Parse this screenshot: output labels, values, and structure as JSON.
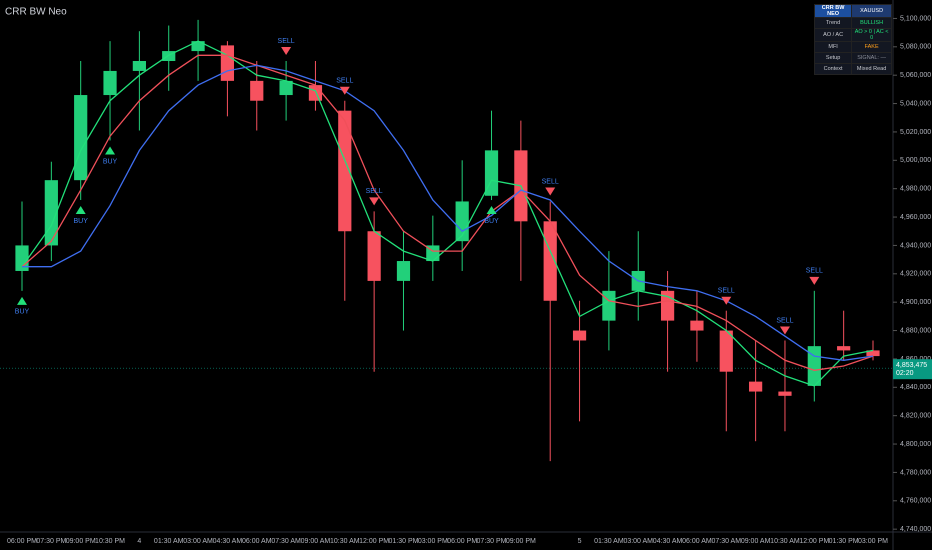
{
  "chart_data": {
    "type": "candlestick",
    "title": "CRR BW Neo",
    "categories": [
      "06:00 PM",
      "07:30 PM",
      "09:00 PM",
      "10:30 PM",
      "4",
      "01:30 AM",
      "03:00 AM",
      "04:30 AM",
      "06:00 AM",
      "07:30 AM",
      "09:00 AM",
      "10:30 AM",
      "12:00 PM",
      "01:30 PM",
      "03:00 PM",
      "06:00 PM",
      "07:30 PM",
      "09:00 PM",
      null,
      "5",
      "01:30 AM",
      "03:00 AM",
      "04:30 AM",
      "06:00 AM",
      "07:30 AM",
      "09:00 AM",
      "10:30 AM",
      "12:00 PM",
      "01:30 PM",
      "03:00 PM"
    ],
    "open": [
      4922000,
      4940000,
      4986000,
      5046000,
      5063000,
      5070000,
      5077000,
      5081000,
      5056000,
      5046000,
      5053000,
      5035000,
      4950000,
      4915000,
      4929000,
      4943000,
      4975000,
      5007000,
      4957000,
      4880000,
      4887000,
      4908000,
      4908000,
      4887000,
      4880000,
      4844000,
      4837000,
      4841000,
      4869000,
      4866000
    ],
    "high": [
      4971000,
      4999000,
      5070000,
      5084000,
      5091000,
      5095000,
      5099000,
      5084000,
      5070000,
      5070000,
      5070000,
      5042000,
      4964000,
      4950000,
      4961000,
      5000000,
      5035000,
      5028000,
      4971000,
      4901000,
      4936000,
      4950000,
      4922000,
      4908000,
      4894000,
      4873000,
      4873000,
      4908000,
      4894000,
      4873000
    ],
    "low": [
      4908000,
      4929000,
      4972000,
      5014000,
      5021000,
      5049000,
      5056000,
      5031000,
      5021000,
      5028000,
      5035000,
      4901000,
      4851000,
      4880000,
      4915000,
      4922000,
      4972000,
      4915000,
      4788000,
      4816000,
      4866000,
      4887000,
      4851000,
      4858000,
      4809000,
      4802000,
      4809000,
      4830000,
      4859000,
      4859000
    ],
    "close": [
      4940000,
      4986000,
      5046000,
      5063000,
      5070000,
      5077000,
      5084000,
      5056000,
      5042000,
      5056000,
      5042000,
      4950000,
      4915000,
      4929000,
      4940000,
      4971000,
      5007000,
      4957000,
      4901000,
      4873000,
      4908000,
      4922000,
      4887000,
      4880000,
      4851000,
      4837000,
      4834000,
      4869000,
      4866000,
      4862000
    ],
    "up_color": "#22d07a",
    "down_color": "#f7525f",
    "series": [
      {
        "name": "Fast",
        "color": "#22e07a",
        "values": [
          4925000,
          4954000,
          5007000,
          5042000,
          5060000,
          5074000,
          5084000,
          5074000,
          5060000,
          5056000,
          5049000,
          5000000,
          4950000,
          4936000,
          4929000,
          4947000,
          4986000,
          4982000,
          4936000,
          4890000,
          4901000,
          4908000,
          4904000,
          4894000,
          4880000,
          4859000,
          4848000,
          4841000,
          4862000,
          4866000
        ]
      },
      {
        "name": "Mid",
        "color": "#f0505a",
        "values": [
          4925000,
          4943000,
          4979000,
          5017000,
          5042000,
          5060000,
          5074000,
          5074000,
          5067000,
          5060000,
          5053000,
          5028000,
          4979000,
          4950000,
          4936000,
          4936000,
          4964000,
          4979000,
          4957000,
          4919000,
          4901000,
          4897000,
          4901000,
          4897000,
          4887000,
          4873000,
          4859000,
          4852000,
          4855000,
          4862000
        ]
      },
      {
        "name": "Slow",
        "color": "#3f6ef0",
        "values": [
          4925000,
          4925000,
          4936000,
          4968000,
          5007000,
          5035000,
          5053000,
          5063000,
          5067000,
          5063000,
          5056000,
          5049000,
          5035000,
          5007000,
          4972000,
          4950000,
          4961000,
          4979000,
          4972000,
          4950000,
          4929000,
          4915000,
          4911000,
          4908000,
          4901000,
          4890000,
          4876000,
          4862000,
          4859000,
          4862000
        ]
      }
    ],
    "signals": [
      {
        "index": 0,
        "label": "BUY"
      },
      {
        "index": 2,
        "label": "BUY"
      },
      {
        "index": 3,
        "label": "BUY"
      },
      {
        "index": 9,
        "label": "SELL"
      },
      {
        "index": 11,
        "label": "SELL"
      },
      {
        "index": 12,
        "label": "SELL"
      },
      {
        "index": 16,
        "label": "BUY"
      },
      {
        "index": 18,
        "label": "SELL"
      },
      {
        "index": 24,
        "label": "SELL"
      },
      {
        "index": 26,
        "label": "SELL"
      },
      {
        "index": 27,
        "label": "SELL"
      }
    ],
    "ylim": [
      4738000,
      5113000
    ],
    "yticks": [
      {
        "value": 4740000,
        "label": "4,740,000"
      },
      {
        "value": 4760000,
        "label": "4,760,000"
      },
      {
        "value": 4780000,
        "label": "4,780,000"
      },
      {
        "value": 4800000,
        "label": "4,800,000"
      },
      {
        "value": 4820000,
        "label": "4,820,000"
      },
      {
        "value": 4840000,
        "label": "4,840,000"
      },
      {
        "value": 4860000,
        "label": "4,860,000"
      },
      {
        "value": 4880000,
        "label": "4,880,000"
      },
      {
        "value": 4900000,
        "label": "4,900,000"
      },
      {
        "value": 4920000,
        "label": "4,920,000"
      },
      {
        "value": 4940000,
        "label": "4,940,000"
      },
      {
        "value": 4960000,
        "label": "4,960,000"
      },
      {
        "value": 4980000,
        "label": "4,980,000"
      },
      {
        "value": 5000000,
        "label": "5,000,000"
      },
      {
        "value": 5020000,
        "label": "5,020,000"
      },
      {
        "value": 5040000,
        "label": "5,040,000"
      },
      {
        "value": 5060000,
        "label": "5,060,000"
      },
      {
        "value": 5080000,
        "label": "5,080,000"
      },
      {
        "value": 5100000,
        "label": "5,100,000"
      }
    ],
    "last_price": {
      "value": 4853475,
      "label": "4,853,475",
      "countdown": "02:20",
      "color": "#089981"
    }
  },
  "panel": {
    "header": [
      "CRR BW NEO",
      "XAUUSD"
    ],
    "rows": [
      {
        "label": "Trend",
        "value": "BULLISH",
        "color": "#22e07a"
      },
      {
        "label": "AO / AC",
        "value": "AO > 0 | AC < 0",
        "color": "#22e07a"
      },
      {
        "label": "MFI",
        "value": "FAKE",
        "color": "#ff9f1a"
      },
      {
        "label": "Setup",
        "value": "SIGNAL: —",
        "color": "#8a8e99"
      },
      {
        "label": "Context",
        "value": "Mixed Read",
        "color": "#c8cad0"
      }
    ]
  }
}
